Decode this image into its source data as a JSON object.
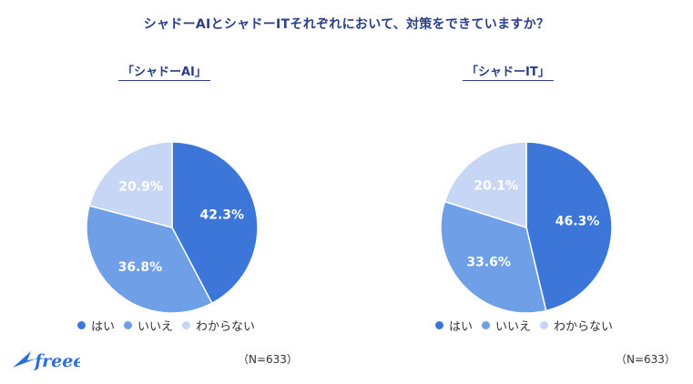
{
  "title": "シャドーAIとシャドーITそれぞれにおいて、対策をできていますか？",
  "brand": {
    "name": "freee",
    "color": "#2f6fd6"
  },
  "colors": {
    "title": "#2a3f86",
    "yes": "#3b76d8",
    "no": "#6f9fe6",
    "unknown": "#c7d6f4"
  },
  "legend": {
    "items": [
      {
        "label": "はい",
        "color": "#3b76d8"
      },
      {
        "label": "いいえ",
        "color": "#6f9fe6"
      },
      {
        "label": "わからない",
        "color": "#c7d6f4"
      }
    ]
  },
  "chart_data": [
    {
      "type": "pie",
      "title": "「シャドーAI」",
      "n_note": "（N=633）",
      "slices": [
        {
          "label": "はい",
          "value": 42.3,
          "display": "42.3%",
          "color": "#3b76d8"
        },
        {
          "label": "いいえ",
          "value": 36.8,
          "display": "36.8%",
          "color": "#6f9fe6"
        },
        {
          "label": "わからない",
          "value": 20.9,
          "display": "20.9%",
          "color": "#c7d6f4"
        }
      ]
    },
    {
      "type": "pie",
      "title": "「シャドーIT」",
      "n_note": "（N=633）",
      "slices": [
        {
          "label": "はい",
          "value": 46.3,
          "display": "46.3%",
          "color": "#3b76d8"
        },
        {
          "label": "いいえ",
          "value": 33.6,
          "display": "33.6%",
          "color": "#6f9fe6"
        },
        {
          "label": "わからない",
          "value": 20.1,
          "display": "20.1%",
          "color": "#c7d6f4"
        }
      ]
    }
  ]
}
